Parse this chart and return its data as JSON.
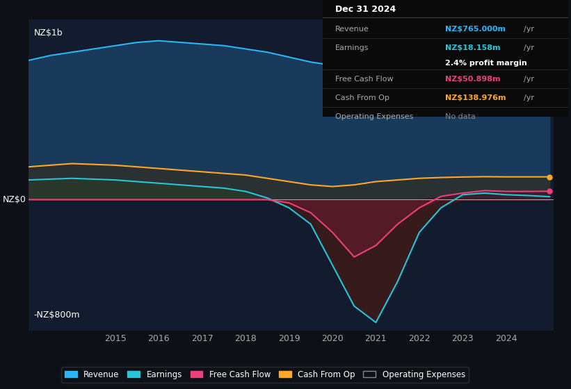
{
  "bg_color": "#0d1117",
  "plot_bg_color": "#131c2e",
  "title": "Dec 31 2024",
  "y_label_top": "NZ$1b",
  "y_label_bottom": "-NZ$800m",
  "y_label_zero": "NZ$0",
  "ylim": [
    -800,
    1100
  ],
  "years": [
    2013,
    2013.5,
    2014,
    2014.5,
    2015,
    2015.5,
    2016,
    2016.5,
    2017,
    2017.5,
    2018,
    2018.5,
    2019,
    2019.5,
    2020,
    2020.5,
    2021,
    2021.5,
    2022,
    2022.5,
    2023,
    2023.5,
    2024,
    2024.5,
    2025
  ],
  "revenue": [
    850,
    880,
    900,
    920,
    940,
    960,
    970,
    960,
    950,
    940,
    920,
    900,
    870,
    840,
    820,
    800,
    750,
    730,
    720,
    730,
    740,
    750,
    755,
    760,
    765
  ],
  "earnings": [
    120,
    125,
    130,
    125,
    120,
    110,
    100,
    90,
    80,
    70,
    50,
    10,
    -50,
    -150,
    -400,
    -650,
    -750,
    -500,
    -200,
    -50,
    30,
    40,
    30,
    25,
    18
  ],
  "free_cash_flow": [
    0,
    0,
    0,
    0,
    0,
    0,
    0,
    0,
    0,
    0,
    0,
    0,
    -20,
    -80,
    -200,
    -350,
    -280,
    -150,
    -50,
    20,
    40,
    55,
    50,
    50,
    51
  ],
  "cash_from_op": [
    200,
    210,
    220,
    215,
    210,
    200,
    190,
    180,
    170,
    160,
    150,
    130,
    110,
    90,
    80,
    90,
    110,
    120,
    130,
    135,
    138,
    140,
    139,
    139,
    139
  ],
  "revenue_color": "#29b6f6",
  "earnings_color": "#26c6da",
  "earnings_fill_color": "#1a4a4a",
  "free_cash_flow_color": "#ec407a",
  "free_cash_flow_fill_color": "#5c1a2a",
  "cash_from_op_color": "#ffa726",
  "revenue_fill_color": "#1a3a5c",
  "x_ticks": [
    2015,
    2016,
    2017,
    2018,
    2019,
    2020,
    2021,
    2022,
    2023,
    2024
  ],
  "info_box": {
    "date": "Dec 31 2024",
    "revenue_label": "Revenue",
    "revenue_value": "NZ$765.000m",
    "revenue_color": "#29b6f6",
    "earnings_label": "Earnings",
    "earnings_value": "NZ$18.158m",
    "earnings_color": "#26c6da",
    "margin_text": "2.4% profit margin",
    "fcf_label": "Free Cash Flow",
    "fcf_value": "NZ$50.898m",
    "fcf_color": "#ec407a",
    "cfop_label": "Cash From Op",
    "cfop_value": "NZ$138.976m",
    "cfop_color": "#ffa726",
    "opex_label": "Operating Expenses",
    "opex_value": "No data",
    "opex_color": "#888888"
  },
  "legend_items": [
    {
      "label": "Revenue",
      "color": "#29b6f6",
      "filled": true
    },
    {
      "label": "Earnings",
      "color": "#26c6da",
      "filled": true
    },
    {
      "label": "Free Cash Flow",
      "color": "#ec407a",
      "filled": true
    },
    {
      "label": "Cash From Op",
      "color": "#ffa726",
      "filled": true
    },
    {
      "label": "Operating Expenses",
      "color": "#888888",
      "filled": false
    }
  ]
}
